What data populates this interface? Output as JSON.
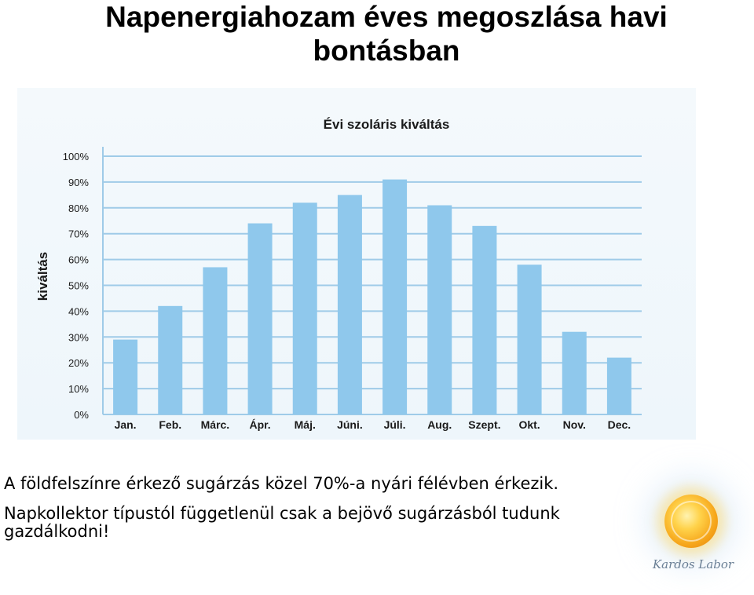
{
  "page": {
    "title": "Napenergiahozam éves megoszlása havi bontásban",
    "paragraph1": "A földfelszínre érkező sugárzás közel 70%-a nyári félévben érkezik.",
    "paragraph2": "Napkollektor típustól függetlenül csak a bejövő sugárzásból tudunk gazdálkodni!"
  },
  "logo": {
    "text": "Kardos Labor",
    "icon": "sun-logo-icon"
  },
  "chart_data": {
    "type": "bar",
    "title": "Évi szoláris kiváltás",
    "xlabel": "",
    "ylabel": "kiváltás",
    "categories": [
      "Jan.",
      "Feb.",
      "Márc.",
      "Ápr.",
      "Máj.",
      "Júni.",
      "Júli.",
      "Aug.",
      "Szept.",
      "Okt.",
      "Nov.",
      "Dec."
    ],
    "values": [
      29,
      42,
      57,
      74,
      82,
      85,
      91,
      81,
      73,
      58,
      32,
      22
    ],
    "ylim": [
      0,
      100
    ],
    "yticks": [
      "0%",
      "10%",
      "20%",
      "30%",
      "40%",
      "50%",
      "60%",
      "70%",
      "80%",
      "90%",
      "100%"
    ],
    "grid": true,
    "bar_color": "#8fc8ec",
    "grid_color": "#9fcbe8"
  }
}
